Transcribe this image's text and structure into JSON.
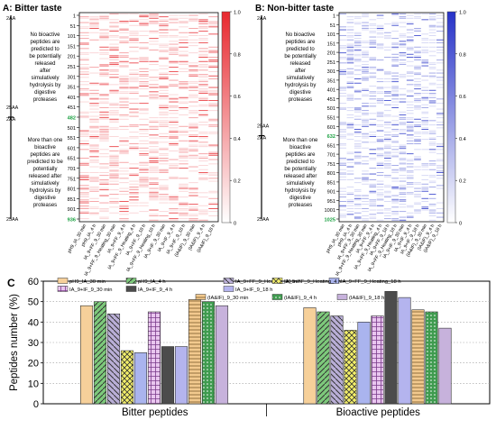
{
  "panel_a": {
    "title": "A: Bitter taste",
    "scale_top": "2AA",
    "scale_bottom": "25AA",
    "mid_top": "25AA",
    "mid_bottom": "2AA",
    "note_top": [
      "No bioactive",
      "peptides are",
      "predicted to",
      "be potentially",
      "released",
      "after",
      "simulatively",
      "hydrolysis by",
      "digestive",
      "proteases"
    ],
    "note_bottom": [
      "More than one",
      "bioactive",
      "peptides are",
      "predicted to be",
      "potentially",
      "released after",
      "simulatively",
      "hydrolysis by",
      "digestive",
      "proteases"
    ],
    "ticks": [
      "1",
      "51",
      "101",
      "151",
      "201",
      "251",
      "301",
      "351",
      "401",
      "451",
      "482",
      "501",
      "551",
      "601",
      "651",
      "701",
      "751",
      "801",
      "851",
      "901",
      "936"
    ],
    "color": "#e8282e"
  },
  "panel_b": {
    "title": "B: Non-bitter taste",
    "scale_top": "2AA",
    "scale_bottom": "25AA",
    "mid_top": "25AA",
    "mid_bottom": "2AA",
    "note_top": [
      "No bioactive",
      "peptides are",
      "predicted to",
      "be potentially",
      "released",
      "after",
      "simulatively",
      "hydrolysis by",
      "digestive",
      "proteases"
    ],
    "note_bottom": [
      "More than one",
      "bioactive",
      "peptides are",
      "predicted to",
      "be potentially",
      "released after",
      "simulatively",
      "hydrolysis by",
      "digestive",
      "proteases"
    ],
    "ticks": [
      "1",
      "51",
      "101",
      "151",
      "201",
      "251",
      "301",
      "351",
      "401",
      "451",
      "501",
      "551",
      "601",
      "632",
      "651",
      "701",
      "751",
      "801",
      "851",
      "901",
      "951",
      "1001",
      "1025"
    ],
    "color": "#2632c8"
  },
  "colorbar_ticks": [
    "1.0",
    "0.8",
    "0.6",
    "0.4",
    "0.2",
    "0"
  ],
  "heatmap_columns": [
    "pH9_IA_30 min",
    "pH9_IA_4 h",
    "IA_9+FF_9_30 min",
    "IA_9+FF_9_Heating_30 min",
    "IA_9+FF_9_4 h",
    "IA_9+FF_9_Heating_4 h",
    "IA_9+FF_9_18 h",
    "IA_9+FF_9_Heating_18 h",
    "IA_9+IF_9_30 min",
    "IA_9+IF_9_4 h",
    "IA_9+IF_9_18 h",
    "(IA&IF)_9_30 min",
    "(IA&IF)_9_4 h",
    "(IA&IF)_9_18 h"
  ],
  "panel_c": {
    "label": "C",
    "legend": [
      "pH9_IA_30 min",
      "pH9_IA_4 h",
      "IA_9+FF_9_Heating_30 min",
      "IA_9+FF_9_Heating_4 h",
      "IA_9+FF_9_Heating_18 h",
      "IA_9+IF_9_30 min",
      "IA_9+IF_9_4 h",
      "IA_9+IF_9_18 h",
      "(IA&IF)_9_30 min",
      "(IA&IF)_9_4 h",
      "(IA&IF)_9_18 h"
    ],
    "colors": [
      "#f6d09a",
      "#7dc97b",
      "#b9aed6",
      "#f4f06a",
      "#aab4ee",
      "#e9c6ef",
      "#4c4c4c",
      "#b4b4ee",
      "#f2c98e",
      "#3f9b4f",
      "#c7b2dc"
    ]
  },
  "chart_data": {
    "type": "bar",
    "title": "",
    "ylabel": "Peptides number (%)",
    "xlabel": "",
    "ylim": [
      0,
      60
    ],
    "yticks": [
      "0",
      "10",
      "20",
      "30",
      "40",
      "50",
      "60"
    ],
    "categories": [
      "Bitter peptides",
      "Bioactive peptides"
    ],
    "series": [
      {
        "name": "pH9_IA_30 min",
        "values": [
          48,
          47
        ]
      },
      {
        "name": "pH9_IA_4 h",
        "values": [
          50,
          45
        ]
      },
      {
        "name": "IA_9+FF_9_Heating_30 min",
        "values": [
          44,
          43
        ]
      },
      {
        "name": "IA_9+FF_9_Heating_4 h",
        "values": [
          26,
          36
        ]
      },
      {
        "name": "IA_9+FF_9_Heating_18 h",
        "values": [
          25,
          40
        ]
      },
      {
        "name": "IA_9+IF_9_30 min",
        "values": [
          45,
          43
        ]
      },
      {
        "name": "IA_9+IF_9_4 h",
        "values": [
          28,
          55
        ]
      },
      {
        "name": "IA_9+IF_9_18 h",
        "values": [
          28,
          52
        ]
      },
      {
        "name": "(IA&IF)_9_30 min",
        "values": [
          51,
          46
        ]
      },
      {
        "name": "(IA&IF)_9_4 h",
        "values": [
          50,
          45
        ]
      },
      {
        "name": "(IA&IF)_9_18 h",
        "values": [
          48,
          37
        ]
      }
    ],
    "grid": true
  }
}
